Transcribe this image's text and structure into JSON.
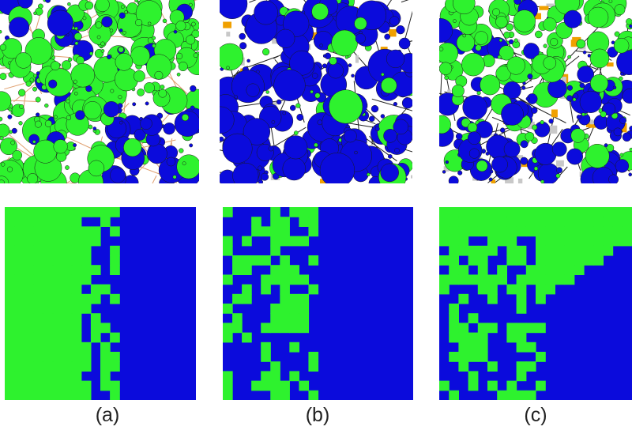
{
  "colors": {
    "green": "#2ef22e",
    "blue": "#0b0bdc",
    "road": "#222222",
    "building_orange": "#f0a000",
    "building_gray": "#c8c8c8",
    "voronoi_edge": "#e0a070"
  },
  "panels": [
    {
      "id": "a",
      "caption": "(a)",
      "map_style": "green-dominant, blue cluster lower right"
    },
    {
      "id": "b",
      "caption": "(b)",
      "map_style": "blue-dominant"
    },
    {
      "id": "c",
      "caption": "(c)",
      "map_style": "green upper left, blue right"
    }
  ]
}
